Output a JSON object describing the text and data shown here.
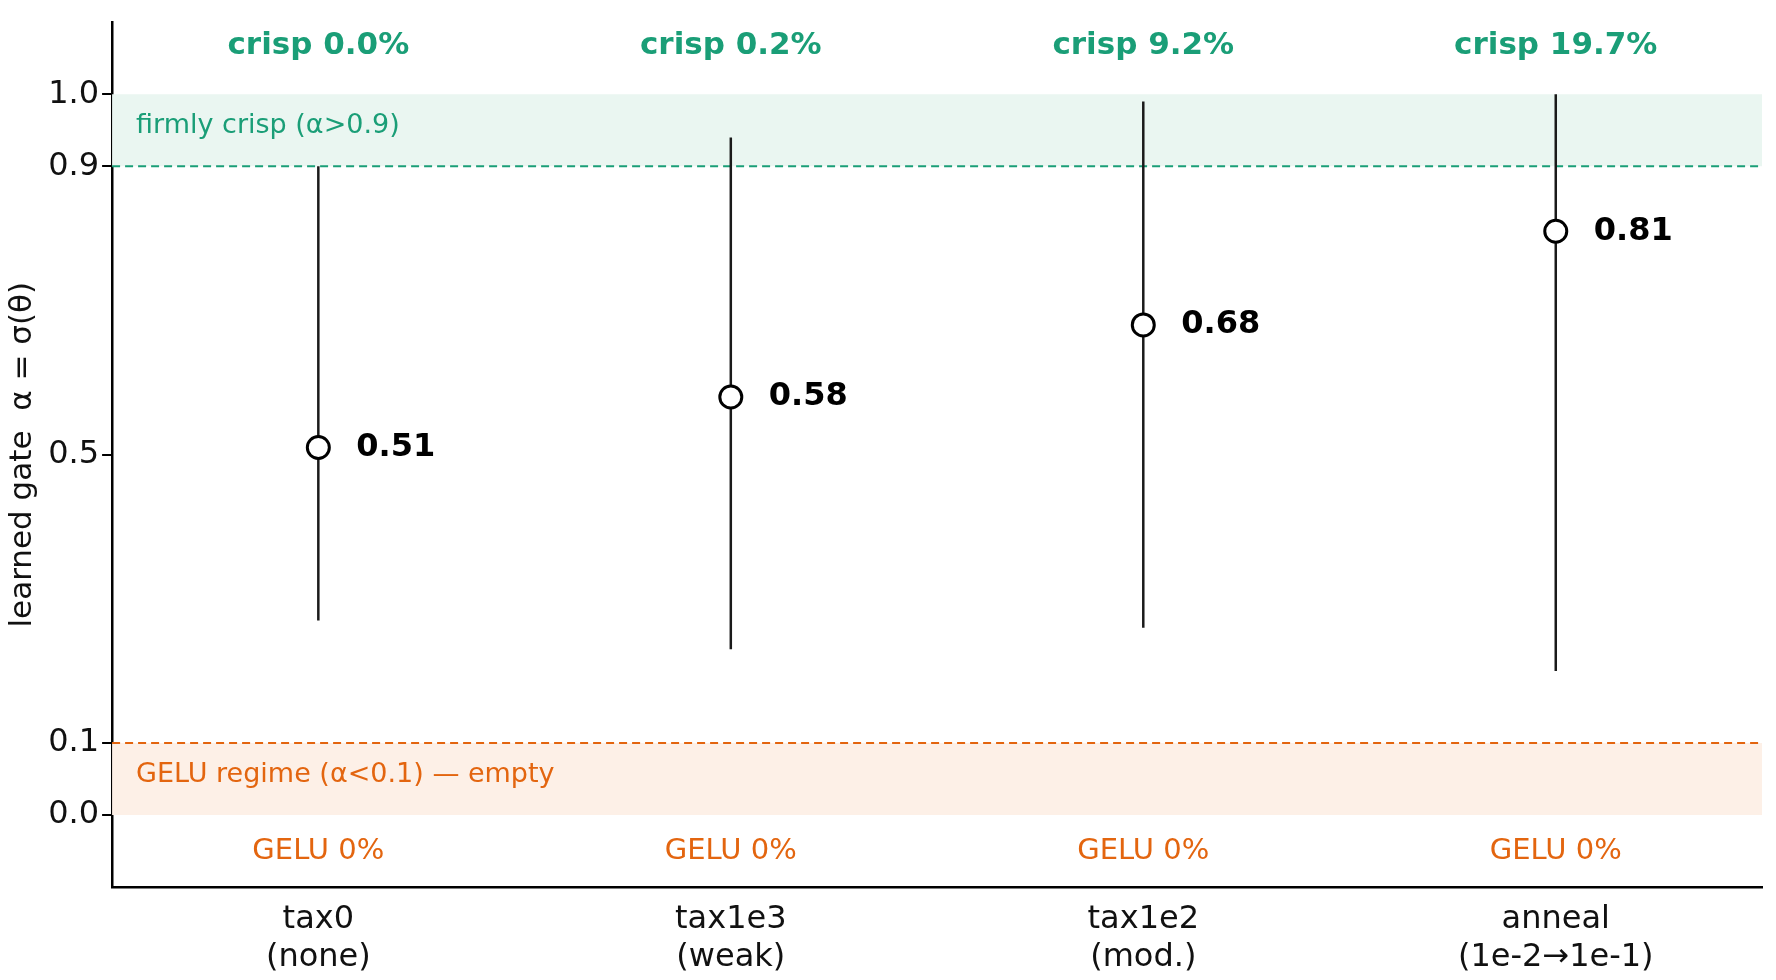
{
  "chart_data": {
    "type": "scatter",
    "ylabel": "learned gate  α = σ(θ)",
    "categories": [
      "tax0\n(none)",
      "tax1e3\n(weak)",
      "tax1e2\n(mod.)",
      "anneal\n(1e-2→1e-1)"
    ],
    "series": [
      {
        "color": "#ffffff",
        "x": [
          "tax0\n(none)",
          "tax1e3\n(weak)",
          "tax1e2\n(mod.)",
          "anneal\n(1e-2→1e-1)"
        ],
        "values": [
          0.51,
          0.58,
          0.68,
          0.81
        ],
        "errors": [
          [
            0.27,
            0.9
          ],
          [
            0.23,
            0.94
          ],
          [
            0.26,
            0.99
          ],
          [
            0.2,
            1.0
          ]
        ]
      }
    ],
    "data_labels": true,
    "marker": "circle",
    "ylim": [
      -0.1,
      1.1
    ],
    "yticks": [
      {
        "value": 0,
        "label": "0.0"
      },
      0.1,
      0.5,
      0.9,
      {
        "value": 1,
        "label": "1.0"
      }
    ],
    "grid": false,
    "legend": false,
    "ref_lines": [
      {
        "axis": "y",
        "value": 0.9,
        "color": "#1a9e77",
        "line_style": "dashed"
      },
      {
        "axis": "y",
        "value": 0.1,
        "color": "#e3650f",
        "line_style": "dashed"
      }
    ],
    "bands": [
      {
        "axis": "y",
        "from": 0.9,
        "to": 1.0,
        "label": "firmly crisp (α>0.9)",
        "color": "#eaf6f1"
      },
      {
        "axis": "y",
        "from": 0.0,
        "to": 0.1,
        "label": "GELU regime (α<0.1) — empty",
        "color": "#fdf0e7"
      }
    ],
    "annotations": [
      "crisp 0.0%",
      "crisp 0.2%",
      "crisp 9.2%",
      "crisp 19.7%",
      "GELU 0%",
      "GELU 0%",
      "GELU 0%",
      "GELU 0%"
    ]
  }
}
